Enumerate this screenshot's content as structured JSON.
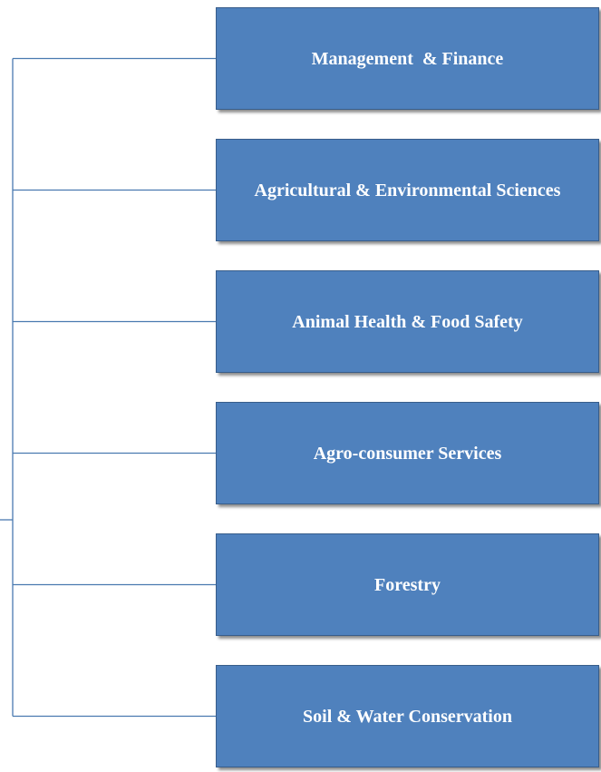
{
  "nodes": [
    {
      "label": "Management  & Finance"
    },
    {
      "label": "Agricultural & Environmental Sciences"
    },
    {
      "label": "Animal Health & Food Safety"
    },
    {
      "label": "Agro-consumer Services"
    },
    {
      "label": "Forestry"
    },
    {
      "label": "Soil & Water Conservation"
    }
  ]
}
